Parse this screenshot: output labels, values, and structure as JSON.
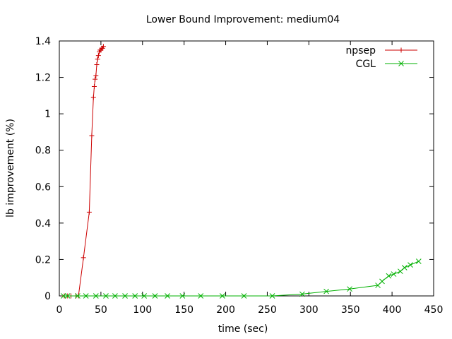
{
  "chart_data": {
    "type": "line",
    "title": "Lower Bound Improvement: medium04",
    "xlabel": "time (sec)",
    "ylabel": "lb improvement (%)",
    "xlim": [
      0,
      450
    ],
    "ylim": [
      0,
      1.4
    ],
    "xticks": [
      0,
      50,
      100,
      150,
      200,
      250,
      300,
      350,
      400,
      450
    ],
    "yticks": [
      0,
      0.2,
      0.4,
      0.6,
      0.8,
      1,
      1.2,
      1.4
    ],
    "grid": false,
    "legend_position": "top-right",
    "series": [
      {
        "name": "npsep",
        "color": "#cc0000",
        "marker": "plus",
        "x": [
          6,
          10,
          14,
          20,
          23,
          29,
          36,
          39,
          41,
          42,
          43,
          44,
          45,
          46,
          47,
          48,
          49,
          50,
          51,
          52,
          53
        ],
        "y": [
          0,
          0,
          0,
          0,
          0,
          0.21,
          0.46,
          0.88,
          1.09,
          1.15,
          1.19,
          1.21,
          1.27,
          1.3,
          1.32,
          1.34,
          1.35,
          1.35,
          1.36,
          1.36,
          1.37
        ]
      },
      {
        "name": "CGL",
        "color": "#00b000",
        "marker": "cross",
        "x": [
          5,
          10,
          22,
          32,
          44,
          56,
          67,
          79,
          91,
          102,
          115,
          130,
          148,
          170,
          196,
          222,
          256,
          292,
          321,
          349,
          383,
          388,
          396,
          402,
          410,
          415,
          422,
          432
        ],
        "y": [
          0,
          0,
          0,
          0,
          0,
          0,
          0,
          0,
          0,
          0,
          0,
          0,
          0,
          0,
          0,
          0,
          0,
          0.01,
          0.025,
          0.038,
          0.058,
          0.08,
          0.11,
          0.12,
          0.135,
          0.155,
          0.17,
          0.19
        ]
      }
    ]
  }
}
